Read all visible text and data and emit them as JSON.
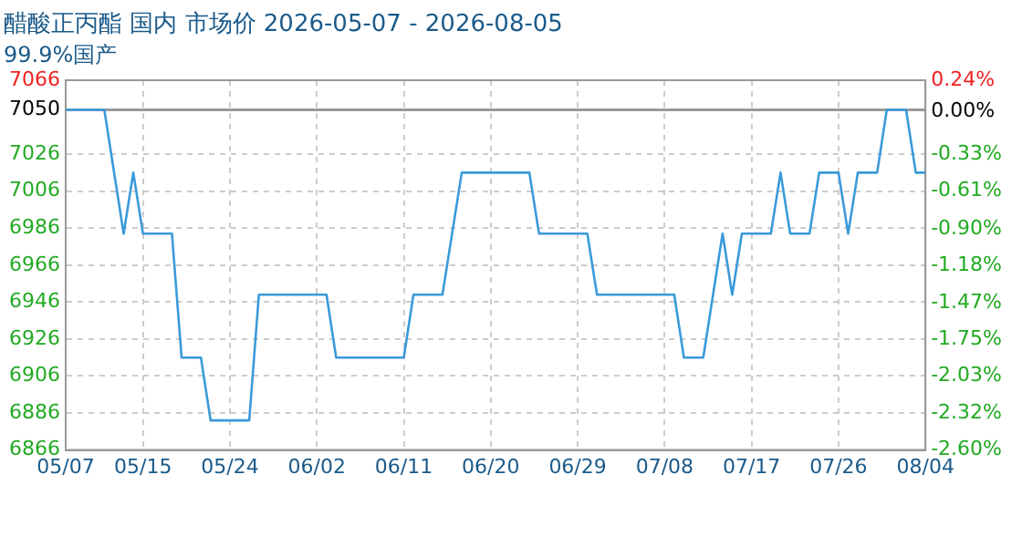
{
  "chart_data": {
    "type": "line",
    "title": "醋酸正丙酯 国内 市场价 2026-05-07 - 2026-08-05",
    "subtitle": "99.9%国产",
    "x": [
      "--05-07",
      "--05-11",
      "--05-13",
      "--05-14",
      "--05-15",
      "--05-18",
      "--05-19",
      "--05-21",
      "--05-22",
      "--05-26",
      "--05-27",
      "--06-03",
      "--06-04",
      "--06-11",
      "--06-12",
      "--06-15",
      "--06-17",
      "--06-24",
      "--06-25",
      "--06-30",
      "--07-01",
      "--07-09",
      "--07-10",
      "--07-12",
      "--07-14",
      "--07-15",
      "--07-16",
      "--07-19",
      "--07-20",
      "--07-21",
      "--07-23",
      "--07-24",
      "--07-26",
      "--07-27",
      "--07-28",
      "--07-30",
      "--07-31",
      "--08-02",
      "--08-03",
      "--08-04"
    ],
    "series": [
      {
        "color": "#3a9ad9",
        "values": [
          7050,
          7050,
          6983,
          7016,
          6983,
          6983,
          6916,
          6916,
          6882,
          6882,
          6950,
          6950,
          6916,
          6916,
          6950,
          6950,
          7016,
          7016,
          6983,
          6983,
          6950,
          6950,
          6916,
          6916,
          6983,
          6950,
          6983,
          6983,
          7016,
          6983,
          6983,
          7016,
          7016,
          6983,
          7016,
          7016,
          7050,
          7050,
          7016,
          7016
        ]
      }
    ],
    "xlim": [
      "--05-07",
      "--08-04"
    ],
    "xticks": [
      {
        "value": "--05-07",
        "label": "05/07"
      },
      {
        "value": "--05-15",
        "label": "05/15"
      },
      {
        "value": "--05-24",
        "label": "05/24"
      },
      {
        "value": "--06-02",
        "label": "06/02"
      },
      {
        "value": "--06-11",
        "label": "06/11"
      },
      {
        "value": "--06-20",
        "label": "06/20"
      },
      {
        "value": "--06-29",
        "label": "06/29"
      },
      {
        "value": "--07-08",
        "label": "07/08"
      },
      {
        "value": "--07-17",
        "label": "07/17"
      },
      {
        "value": "--07-26",
        "label": "07/26"
      },
      {
        "value": "--08-04",
        "label": "08/04"
      }
    ],
    "ylim": [
      6866,
      7066
    ],
    "yticks": [
      6866,
      6886,
      6906,
      6926,
      6946,
      6966,
      6986,
      7006,
      7026,
      7050,
      7066
    ],
    "y2lim": [
      -2.6,
      0.24
    ],
    "y2ticks": [
      {
        "value": -2.6,
        "label": "-2.60%"
      },
      {
        "value": -2.32,
        "label": "-2.32%"
      },
      {
        "value": -2.03,
        "label": "-2.03%"
      },
      {
        "value": -1.75,
        "label": "-1.75%"
      },
      {
        "value": -1.47,
        "label": "-1.47%"
      },
      {
        "value": -1.18,
        "label": "-1.18%"
      },
      {
        "value": -0.9,
        "label": "-0.90%"
      },
      {
        "value": -0.61,
        "label": "-0.61%"
      },
      {
        "value": -0.33,
        "label": "-0.33%"
      },
      {
        "value": 0,
        "label": "0.00%"
      },
      {
        "value": 0.24,
        "label": "0.24%"
      }
    ],
    "ref_lines": [
      {
        "axis": "y",
        "value": 7050,
        "color": "#999999"
      }
    ],
    "grid": true,
    "legend": false,
    "marker": "none",
    "line_style": "solid"
  }
}
